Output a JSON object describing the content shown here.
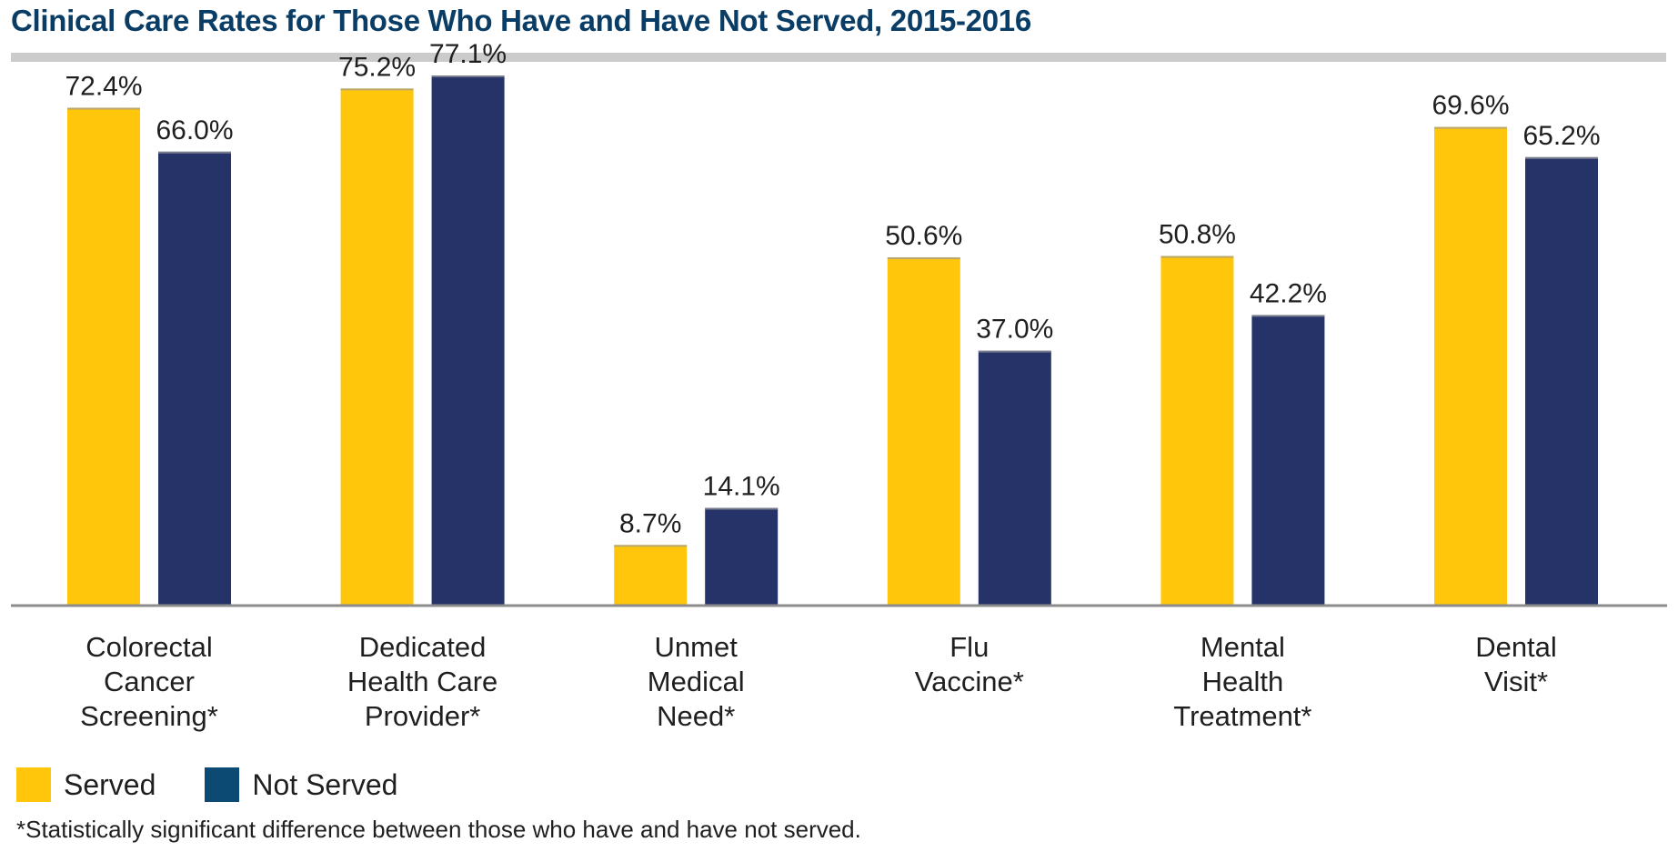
{
  "title": "Clinical Care Rates for Those Who Have and Have Not Served, 2015-2016",
  "footnote": "*Statistically significant difference between those who have and have not served.",
  "legend": {
    "served_label": "Served",
    "not_served_label": "Not Served"
  },
  "colors": {
    "served": "#FFC60B",
    "not_served": "#253368",
    "legend_not_served": "#0C4A73",
    "title": "#0a3d66",
    "rule": "#cbcbcb",
    "baseline": "#8c8c8c"
  },
  "chart_data": {
    "type": "bar",
    "title": "Clinical Care Rates for Those Who Have and Have Not Served, 2015-2016",
    "xlabel": "",
    "ylabel": "",
    "ylim": [
      0,
      100
    ],
    "grid": false,
    "legend_placement": "bottom-left",
    "categories": [
      [
        "Colorectal",
        "Cancer",
        "Screening*"
      ],
      [
        "Dedicated",
        "Health Care",
        "Provider*"
      ],
      [
        "Unmet",
        "Medical",
        "Need*"
      ],
      [
        "Flu",
        "Vaccine*"
      ],
      [
        "Mental",
        "Health",
        "Treatment*"
      ],
      [
        "Dental",
        "Visit*"
      ]
    ],
    "series": [
      {
        "name": "Served",
        "values": [
          72.4,
          75.2,
          8.7,
          50.6,
          50.8,
          69.6
        ],
        "labels": [
          "72.4%",
          "75.2%",
          "8.7%",
          "50.6%",
          "50.8%",
          "69.6%"
        ]
      },
      {
        "name": "Not Served",
        "values": [
          66.0,
          77.1,
          14.1,
          37.0,
          42.2,
          65.2
        ],
        "labels": [
          "66.0%",
          "77.1%",
          "14.1%",
          "37.0%",
          "42.2%",
          "65.2%"
        ]
      }
    ]
  }
}
